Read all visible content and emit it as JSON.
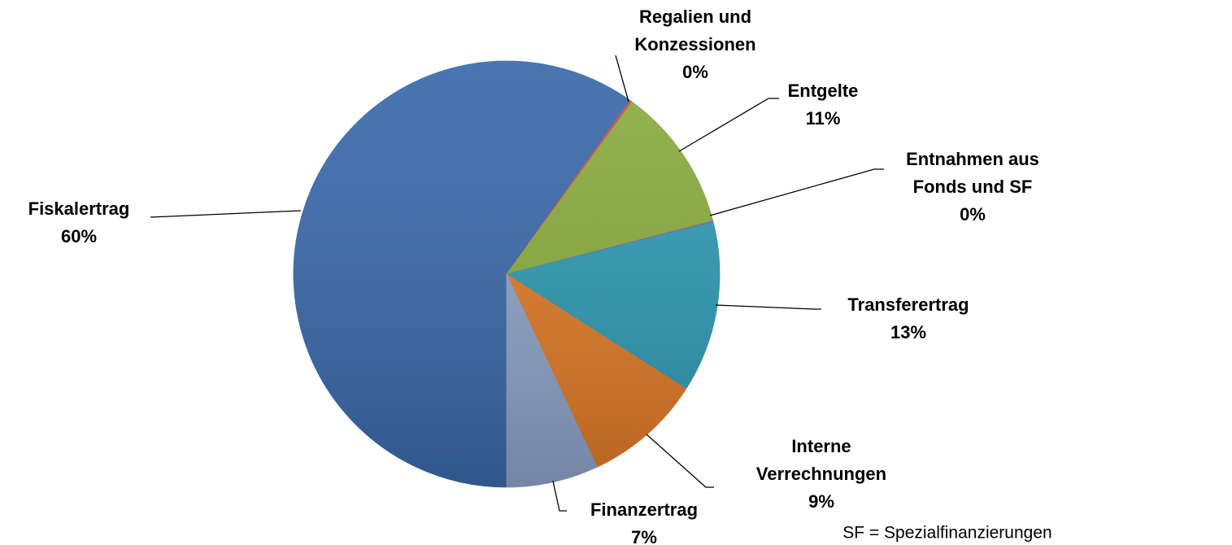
{
  "chart_data": {
    "type": "pie",
    "categories": [
      "Fiskalertrag",
      "Regalien und\nKonzessionen",
      "Entgelte",
      "Entnahmen aus\nFonds und SF",
      "Transferertrag",
      "Interne\nVerrechnungen",
      "Finanzertrag"
    ],
    "values": [
      60,
      0.2,
      11,
      0.1,
      13,
      9,
      7
    ],
    "value_labels": [
      "60%",
      "0%",
      "11%",
      "0%",
      "13%",
      "9%",
      "7%"
    ],
    "colors": [
      "#3a69aa",
      "#c0504d",
      "#8aab3e",
      "#7f63a0",
      "#2e9ab4",
      "#e07a28",
      "#8ea3c9"
    ],
    "note": "SF = Spezialfinanzierungen"
  }
}
